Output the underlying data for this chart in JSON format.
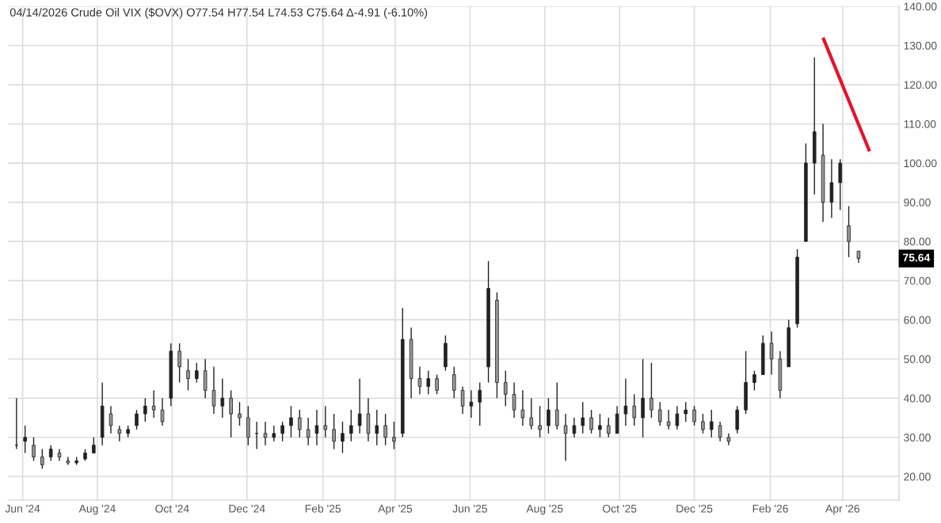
{
  "chart_data": {
    "type": "candlestick",
    "title": "04/14/2026 Crude Oil VIX ($OVX) O77.54 H77.54 L74.53 C75.64 Δ-4.91 (-6.10%)",
    "color": "#222222",
    "grid": true,
    "x": [
      "2024-05-27",
      "2024-06-03",
      "2024-06-10",
      "2024-06-17",
      "2024-06-24",
      "2024-07-01",
      "2024-07-08",
      "2024-07-15",
      "2024-07-22",
      "2024-07-29",
      "2024-08-05",
      "2024-08-12",
      "2024-08-19",
      "2024-08-26",
      "2024-09-02",
      "2024-09-09",
      "2024-09-16",
      "2024-09-23",
      "2024-09-30",
      "2024-10-07",
      "2024-10-14",
      "2024-10-21",
      "2024-10-28",
      "2024-11-04",
      "2024-11-11",
      "2024-11-18",
      "2024-11-25",
      "2024-12-02",
      "2024-12-09",
      "2024-12-16",
      "2024-12-23",
      "2024-12-30",
      "2025-01-06",
      "2025-01-13",
      "2025-01-20",
      "2025-01-27",
      "2025-02-03",
      "2025-02-10",
      "2025-02-17",
      "2025-02-24",
      "2025-03-03",
      "2025-03-10",
      "2025-03-17",
      "2025-03-24",
      "2025-03-31",
      "2025-04-07",
      "2025-04-14",
      "2025-04-21",
      "2025-04-28",
      "2025-05-05",
      "2025-05-12",
      "2025-05-19",
      "2025-05-26",
      "2025-06-02",
      "2025-06-09",
      "2025-06-16",
      "2025-06-23",
      "2025-06-30",
      "2025-07-07",
      "2025-07-14",
      "2025-07-21",
      "2025-07-28",
      "2025-08-04",
      "2025-08-11",
      "2025-08-18",
      "2025-08-25",
      "2025-09-01",
      "2025-09-08",
      "2025-09-15",
      "2025-09-22",
      "2025-09-29",
      "2025-10-06",
      "2025-10-13",
      "2025-10-20",
      "2025-10-27",
      "2025-11-03",
      "2025-11-10",
      "2025-11-17",
      "2025-11-24",
      "2025-12-01",
      "2025-12-08",
      "2025-12-15",
      "2025-12-22",
      "2025-12-29",
      "2026-01-05",
      "2026-01-12",
      "2026-01-19",
      "2026-01-26",
      "2026-02-02",
      "2026-02-09",
      "2026-02-16",
      "2026-02-23",
      "2026-03-02",
      "2026-03-09",
      "2026-03-16",
      "2026-03-23",
      "2026-03-30",
      "2026-04-06",
      "2026-04-14"
    ],
    "ohlc": [
      [
        28,
        40,
        27,
        28
      ],
      [
        29,
        33,
        26,
        30
      ],
      [
        28,
        30,
        24,
        25
      ],
      [
        25,
        27,
        22,
        23
      ],
      [
        25,
        28,
        24,
        27
      ],
      [
        26,
        27,
        24,
        25
      ],
      [
        24,
        25,
        23,
        23.5
      ],
      [
        23.5,
        25,
        23,
        24
      ],
      [
        24.5,
        27,
        24,
        26
      ],
      [
        26,
        30,
        26,
        28
      ],
      [
        30,
        44,
        28,
        38
      ],
      [
        36,
        38,
        31,
        33
      ],
      [
        32,
        33,
        29,
        31
      ],
      [
        31,
        33,
        30,
        32
      ],
      [
        33,
        37,
        32,
        36
      ],
      [
        36,
        40,
        34,
        38
      ],
      [
        38,
        42,
        35,
        37
      ],
      [
        37,
        40,
        33,
        34
      ],
      [
        40,
        54,
        38,
        52
      ],
      [
        52,
        54,
        44,
        48
      ],
      [
        47,
        50,
        42,
        45
      ],
      [
        45,
        49,
        44,
        47
      ],
      [
        47,
        50,
        40,
        42
      ],
      [
        42,
        48,
        36,
        38
      ],
      [
        38,
        45,
        35,
        40
      ],
      [
        40,
        42,
        30,
        36
      ],
      [
        36,
        39,
        33,
        35
      ],
      [
        35,
        38,
        28,
        30
      ],
      [
        31,
        34,
        27,
        31
      ],
      [
        31,
        34,
        28,
        30
      ],
      [
        30,
        33,
        29,
        31
      ],
      [
        31,
        34,
        29,
        33
      ],
      [
        33,
        38,
        30,
        35
      ],
      [
        35,
        37,
        30,
        32
      ],
      [
        32,
        35,
        28,
        30
      ],
      [
        31,
        37,
        28,
        33
      ],
      [
        33,
        38,
        30,
        32
      ],
      [
        32,
        36,
        27,
        29
      ],
      [
        29,
        34,
        26,
        31
      ],
      [
        31,
        37,
        29,
        33
      ],
      [
        33,
        45,
        31,
        36
      ],
      [
        36,
        40,
        29,
        31
      ],
      [
        31,
        37,
        28,
        33
      ],
      [
        33,
        36,
        28,
        30
      ],
      [
        30,
        34,
        27,
        29
      ],
      [
        31,
        63,
        30,
        55
      ],
      [
        55,
        58,
        40,
        45
      ],
      [
        45,
        48,
        41,
        43
      ],
      [
        43,
        47,
        41,
        45
      ],
      [
        45,
        46,
        41,
        42
      ],
      [
        48,
        56,
        47,
        54
      ],
      [
        46,
        48,
        40,
        42
      ],
      [
        42,
        43,
        36,
        38
      ],
      [
        38,
        42,
        35,
        39
      ],
      [
        39,
        44,
        33,
        42
      ],
      [
        48,
        75,
        44,
        68
      ],
      [
        65,
        67,
        40,
        44
      ],
      [
        44,
        47,
        38,
        41
      ],
      [
        41,
        44,
        35,
        37
      ],
      [
        37,
        42,
        33,
        35
      ],
      [
        35,
        40,
        32,
        33
      ],
      [
        33,
        38,
        30,
        32
      ],
      [
        33,
        40,
        31,
        37
      ],
      [
        37,
        44,
        32,
        33
      ],
      [
        33,
        36,
        24,
        31
      ],
      [
        31,
        35,
        30,
        33
      ],
      [
        33,
        39,
        31,
        35
      ],
      [
        35,
        37,
        31,
        32
      ],
      [
        32,
        36,
        30,
        33
      ],
      [
        33,
        35,
        30,
        31
      ],
      [
        31,
        38,
        31,
        36
      ],
      [
        36,
        45,
        33,
        38
      ],
      [
        38,
        41,
        33,
        35
      ],
      [
        35,
        50,
        30,
        40
      ],
      [
        40,
        49,
        35,
        37
      ],
      [
        37,
        39,
        33,
        34
      ],
      [
        34,
        37,
        32,
        33
      ],
      [
        33,
        38,
        32,
        36
      ],
      [
        36,
        39,
        34,
        37
      ],
      [
        37,
        38,
        33,
        34
      ],
      [
        34,
        36,
        31,
        32
      ],
      [
        32,
        37,
        30,
        34
      ],
      [
        33,
        34,
        29,
        30
      ],
      [
        30,
        31,
        28,
        29
      ],
      [
        32,
        38,
        31,
        37
      ],
      [
        37,
        52,
        36,
        44
      ],
      [
        44,
        47,
        42,
        46
      ],
      [
        46,
        56,
        46,
        54
      ],
      [
        54,
        57,
        46,
        50
      ],
      [
        50,
        52,
        40,
        42
      ],
      [
        48,
        60,
        48,
        58
      ],
      [
        59,
        78,
        58,
        76
      ],
      [
        80,
        105,
        80,
        100
      ],
      [
        100,
        127,
        92,
        108
      ],
      [
        102,
        110,
        85,
        90
      ],
      [
        90,
        101,
        86,
        95
      ],
      [
        95,
        101,
        88,
        100
      ],
      [
        84,
        89,
        76,
        80
      ],
      [
        77.54,
        77.54,
        74.53,
        75.64
      ]
    ],
    "series": [
      {
        "type": "line",
        "color": "#e8112d",
        "x": [
          "2026-03-16",
          "2026-04-23"
        ],
        "values": [
          132,
          103
        ]
      }
    ],
    "annotations": [
      "75.64"
    ],
    "xlim": [
      "2024-05-20",
      "2026-05-17"
    ],
    "xticks": [
      {
        "value": "2024-06-01",
        "label": "Jun '24"
      },
      {
        "value": "2024-08-01",
        "label": "Aug '24"
      },
      {
        "value": "2024-10-01",
        "label": "Oct '24"
      },
      {
        "value": "2024-12-01",
        "label": "Dec '24"
      },
      {
        "value": "2025-02-01",
        "label": "Feb '25"
      },
      {
        "value": "2025-04-01",
        "label": "Apr '25"
      },
      {
        "value": "2025-06-01",
        "label": "Jun '25"
      },
      {
        "value": "2025-08-01",
        "label": "Aug '25"
      },
      {
        "value": "2025-10-01",
        "label": "Oct '25"
      },
      {
        "value": "2025-12-01",
        "label": "Dec '25"
      },
      {
        "value": "2026-02-01",
        "label": "Feb '26"
      },
      {
        "value": "2026-04-01",
        "label": "Apr '26"
      }
    ],
    "ylim": [
      14,
      140
    ],
    "yticks": [
      {
        "value": 20,
        "label": "20.00"
      },
      {
        "value": 30,
        "label": "30.00"
      },
      {
        "value": 40,
        "label": "40.00"
      },
      {
        "value": 50,
        "label": "50.00"
      },
      {
        "value": 60,
        "label": "60.00"
      },
      {
        "value": 70,
        "label": "70.00"
      },
      {
        "value": 80,
        "label": "80.00"
      },
      {
        "value": 90,
        "label": "90.00"
      },
      {
        "value": 100,
        "label": "100.00"
      },
      {
        "value": 110,
        "label": "110.00"
      },
      {
        "value": 120,
        "label": "120.00"
      },
      {
        "value": 130,
        "label": "130.00"
      },
      {
        "value": 140,
        "label": "140.00"
      }
    ]
  }
}
